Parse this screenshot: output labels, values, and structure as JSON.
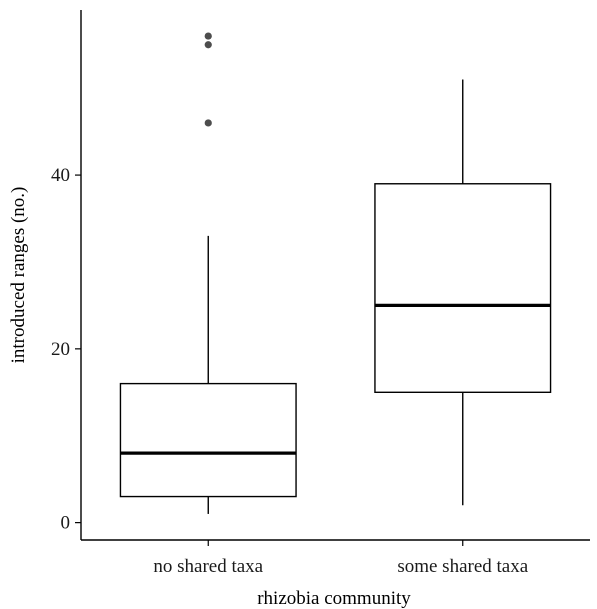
{
  "chart_data": {
    "type": "box",
    "title": "",
    "xlabel": "rhizobia community",
    "ylabel": "introduced ranges (no.)",
    "ylim": [
      -2,
      59
    ],
    "yticks": [
      0,
      20,
      40
    ],
    "grid": false,
    "legend": "none",
    "categories": [
      "no shared taxa",
      "some shared taxa"
    ],
    "boxes": [
      {
        "category": "no shared taxa",
        "whisker_low": 1,
        "q1": 3,
        "median": 8,
        "q3": 16,
        "whisker_high": 33,
        "outliers": [
          46,
          55,
          56
        ]
      },
      {
        "category": "some shared taxa",
        "whisker_low": 2,
        "q1": 15,
        "median": 25,
        "q3": 39,
        "whisker_high": 51,
        "outliers": []
      }
    ],
    "colors": {
      "box_fill": "#ffffff",
      "box_stroke": "#000000",
      "outlier": "#4d4d4d"
    }
  }
}
